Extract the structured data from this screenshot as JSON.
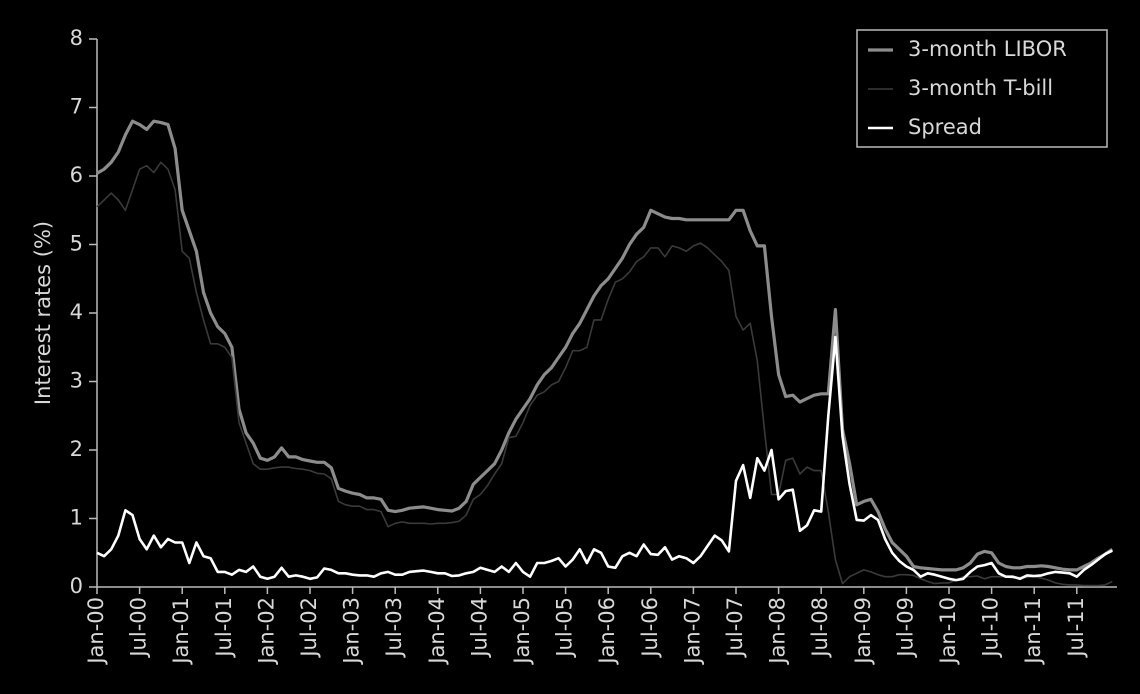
{
  "chart_data": {
    "type": "line",
    "ylabel": "Interest rates (%)",
    "ylim": [
      0,
      8
    ],
    "yticks": [
      0,
      1,
      2,
      3,
      4,
      5,
      6,
      7,
      8
    ],
    "legend": "upper right",
    "categories": [
      "Jan-00",
      null,
      null,
      null,
      null,
      null,
      "Jul-00",
      null,
      null,
      null,
      null,
      null,
      "Jan-01",
      null,
      null,
      null,
      null,
      null,
      "Jul-01",
      null,
      null,
      null,
      null,
      null,
      "Jan-02",
      null,
      null,
      null,
      null,
      null,
      "Jul-02",
      null,
      null,
      null,
      null,
      null,
      "Jan-03",
      null,
      null,
      null,
      null,
      null,
      "Jul-03",
      null,
      null,
      null,
      null,
      null,
      "Jan-04",
      null,
      null,
      null,
      null,
      null,
      "Jul-04",
      null,
      null,
      null,
      null,
      null,
      "Jan-05",
      null,
      null,
      null,
      null,
      null,
      "Jul-05",
      null,
      null,
      null,
      null,
      null,
      "Jan-06",
      null,
      null,
      null,
      null,
      null,
      "Jul-06",
      null,
      null,
      null,
      null,
      null,
      "Jan-07",
      null,
      null,
      null,
      null,
      null,
      "Jul-07",
      null,
      null,
      null,
      null,
      null,
      "Jan-08",
      null,
      null,
      null,
      null,
      null,
      "Jul-08",
      null,
      null,
      null,
      null,
      null,
      "Jan-09",
      null,
      null,
      null,
      null,
      null,
      "Jul-09",
      null,
      null,
      null,
      null,
      null,
      "Jan-10",
      null,
      null,
      null,
      null,
      null,
      "Jul-10",
      null,
      null,
      null,
      null,
      null,
      "Jan-11",
      null,
      null,
      null,
      null,
      null,
      "Jul-11",
      null,
      null,
      null,
      null,
      null
    ],
    "series": [
      {
        "name": "3-month LIBOR",
        "color": "#8c8c8c",
        "values": [
          6.04,
          6.1,
          6.2,
          6.35,
          6.6,
          6.8,
          6.75,
          6.68,
          6.8,
          6.78,
          6.75,
          6.4,
          5.5,
          5.2,
          4.9,
          4.3,
          4.0,
          3.8,
          3.7,
          3.5,
          2.6,
          2.25,
          2.1,
          1.88,
          1.85,
          1.9,
          2.03,
          1.9,
          1.9,
          1.86,
          1.84,
          1.82,
          1.82,
          1.74,
          1.44,
          1.4,
          1.37,
          1.35,
          1.3,
          1.3,
          1.28,
          1.12,
          1.1,
          1.12,
          1.15,
          1.16,
          1.17,
          1.15,
          1.13,
          1.12,
          1.11,
          1.15,
          1.25,
          1.5,
          1.6,
          1.7,
          1.8,
          2.0,
          2.25,
          2.45,
          2.6,
          2.75,
          2.95,
          3.1,
          3.2,
          3.35,
          3.5,
          3.7,
          3.85,
          4.05,
          4.25,
          4.4,
          4.5,
          4.65,
          4.8,
          5.0,
          5.15,
          5.25,
          5.5,
          5.45,
          5.4,
          5.38,
          5.38,
          5.36,
          5.36,
          5.36,
          5.36,
          5.36,
          5.36,
          5.36,
          5.5,
          5.5,
          5.2,
          4.98,
          4.98,
          3.95,
          3.1,
          2.78,
          2.8,
          2.7,
          2.75,
          2.8,
          2.82,
          2.82,
          4.05,
          2.3,
          1.8,
          1.2,
          1.25,
          1.28,
          1.1,
          0.85,
          0.65,
          0.55,
          0.45,
          0.3,
          0.28,
          0.27,
          0.26,
          0.25,
          0.25,
          0.25,
          0.28,
          0.35,
          0.48,
          0.52,
          0.5,
          0.35,
          0.3,
          0.28,
          0.28,
          0.3,
          0.3,
          0.31,
          0.3,
          0.28,
          0.26,
          0.25,
          0.25,
          0.3,
          0.35,
          0.42,
          0.48,
          0.55
        ]
      },
      {
        "name": "3-month T-bill",
        "color": "#3a3a3a",
        "values": [
          5.55,
          5.65,
          5.75,
          5.65,
          5.5,
          5.8,
          6.1,
          6.15,
          6.05,
          6.2,
          6.1,
          5.8,
          4.9,
          4.8,
          4.3,
          3.9,
          3.55,
          3.55,
          3.5,
          3.35,
          2.4,
          2.1,
          1.8,
          1.72,
          1.72,
          1.74,
          1.75,
          1.75,
          1.73,
          1.72,
          1.7,
          1.66,
          1.65,
          1.58,
          1.25,
          1.2,
          1.18,
          1.18,
          1.13,
          1.13,
          1.1,
          0.88,
          0.93,
          0.95,
          0.93,
          0.93,
          0.93,
          0.92,
          0.93,
          0.93,
          0.94,
          0.96,
          1.05,
          1.28,
          1.35,
          1.48,
          1.65,
          1.8,
          2.18,
          2.2,
          2.4,
          2.65,
          2.8,
          2.85,
          2.95,
          3.0,
          3.2,
          3.45,
          3.45,
          3.5,
          3.9,
          3.9,
          4.2,
          4.45,
          4.5,
          4.6,
          4.75,
          4.82,
          4.95,
          4.95,
          4.82,
          4.98,
          4.95,
          4.9,
          4.98,
          5.02,
          4.95,
          4.85,
          4.75,
          4.62,
          3.95,
          3.75,
          3.85,
          3.3,
          2.3,
          1.35,
          1.35,
          1.85,
          1.88,
          1.65,
          1.75,
          1.7,
          1.7,
          1.1,
          0.4,
          0.05,
          0.15,
          0.2,
          0.25,
          0.22,
          0.18,
          0.15,
          0.15,
          0.18,
          0.18,
          0.17,
          0.12,
          0.08,
          0.05,
          0.06,
          0.06,
          0.1,
          0.15,
          0.15,
          0.16,
          0.12,
          0.15,
          0.15,
          0.15,
          0.13,
          0.14,
          0.14,
          0.15,
          0.13,
          0.1,
          0.06,
          0.04,
          0.03,
          0.03,
          0.02,
          0.02,
          0.02,
          0.03,
          0.08
        ]
      },
      {
        "name": "Spread",
        "color": "#ffffff",
        "values": [
          0.5,
          0.45,
          0.55,
          0.75,
          1.12,
          1.05,
          0.7,
          0.55,
          0.75,
          0.58,
          0.7,
          0.65,
          0.65,
          0.35,
          0.65,
          0.45,
          0.42,
          0.22,
          0.22,
          0.18,
          0.25,
          0.22,
          0.3,
          0.15,
          0.12,
          0.15,
          0.28,
          0.15,
          0.17,
          0.15,
          0.12,
          0.14,
          0.27,
          0.25,
          0.2,
          0.2,
          0.18,
          0.17,
          0.17,
          0.15,
          0.2,
          0.22,
          0.18,
          0.18,
          0.22,
          0.23,
          0.24,
          0.22,
          0.2,
          0.2,
          0.16,
          0.17,
          0.2,
          0.22,
          0.28,
          0.25,
          0.22,
          0.3,
          0.22,
          0.35,
          0.22,
          0.15,
          0.35,
          0.35,
          0.38,
          0.42,
          0.3,
          0.4,
          0.55,
          0.35,
          0.55,
          0.5,
          0.3,
          0.28,
          0.45,
          0.5,
          0.45,
          0.62,
          0.48,
          0.47,
          0.58,
          0.4,
          0.45,
          0.42,
          0.35,
          0.45,
          0.6,
          0.75,
          0.68,
          0.52,
          1.55,
          1.78,
          1.3,
          1.88,
          1.7,
          2.0,
          1.28,
          1.4,
          1.42,
          0.82,
          0.9,
          1.12,
          1.1,
          2.5,
          3.65,
          2.2,
          1.5,
          0.98,
          0.97,
          1.05,
          0.98,
          0.7,
          0.5,
          0.38,
          0.3,
          0.25,
          0.15,
          0.2,
          0.18,
          0.15,
          0.12,
          0.1,
          0.12,
          0.22,
          0.3,
          0.32,
          0.35,
          0.2,
          0.15,
          0.15,
          0.12,
          0.17,
          0.16,
          0.17,
          0.2,
          0.22,
          0.21,
          0.2,
          0.15,
          0.25,
          0.32,
          0.4,
          0.48,
          0.53
        ]
      }
    ]
  }
}
